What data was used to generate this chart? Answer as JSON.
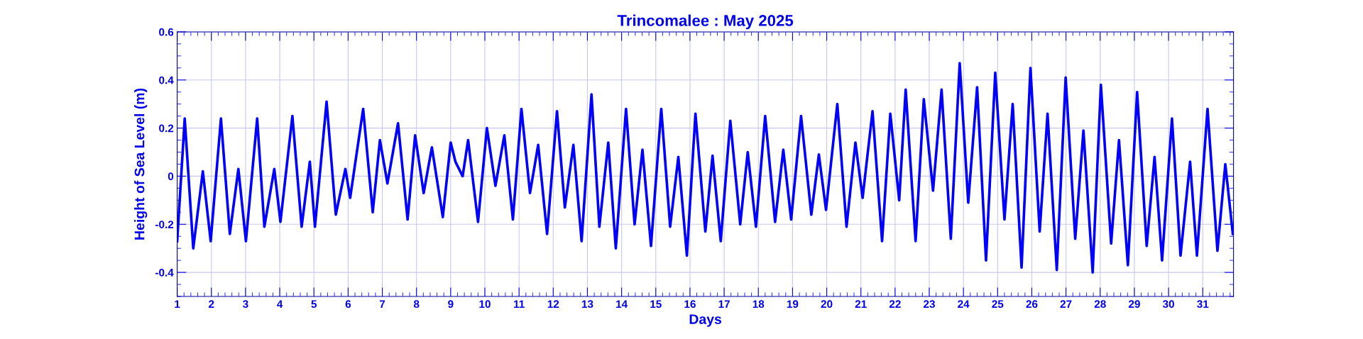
{
  "chart_data": {
    "type": "line",
    "title": "Trincomalee : May 2025",
    "xlabel": "Days",
    "ylabel": "Height of Sea Level (m)",
    "xlim": [
      1,
      31.9
    ],
    "xticks": [
      1,
      2,
      3,
      4,
      5,
      6,
      7,
      8,
      9,
      10,
      11,
      12,
      13,
      14,
      15,
      16,
      17,
      18,
      19,
      20,
      21,
      22,
      23,
      24,
      25,
      26,
      27,
      28,
      29,
      30,
      31
    ],
    "ylim": [
      -0.5,
      0.6
    ],
    "yticks": [
      -0.4,
      -0.2,
      0,
      0.2,
      0.4,
      0.6
    ],
    "grid": true,
    "marker": "none",
    "line_style": "solid",
    "series": [
      {
        "color": "#0000ff",
        "x": [
          1.0,
          1.22,
          1.47,
          1.75,
          1.98,
          2.28,
          2.54,
          2.79,
          3.01,
          3.34,
          3.55,
          3.84,
          4.02,
          4.37,
          4.64,
          4.88,
          5.03,
          5.37,
          5.64,
          5.92,
          6.06,
          6.44,
          6.72,
          6.93,
          7.15,
          7.46,
          7.74,
          7.96,
          8.21,
          8.45,
          8.77,
          9.0,
          9.14,
          9.35,
          9.51,
          9.8,
          10.06,
          10.31,
          10.57,
          10.82,
          11.07,
          11.32,
          11.56,
          11.82,
          12.11,
          12.34,
          12.59,
          12.83,
          13.12,
          13.35,
          13.61,
          13.83,
          14.13,
          14.38,
          14.61,
          14.86,
          15.16,
          15.42,
          15.66,
          15.91,
          16.16,
          16.45,
          16.66,
          16.9,
          17.18,
          17.47,
          17.69,
          17.93,
          18.2,
          18.49,
          18.73,
          18.96,
          19.25,
          19.55,
          19.77,
          19.98,
          20.31,
          20.58,
          20.84,
          21.05,
          21.34,
          21.62,
          21.86,
          22.12,
          22.31,
          22.6,
          22.84,
          23.11,
          23.36,
          23.63,
          23.89,
          24.14,
          24.4,
          24.66,
          24.93,
          25.2,
          25.44,
          25.7,
          25.96,
          26.23,
          26.46,
          26.73,
          26.99,
          27.27,
          27.51,
          27.78,
          28.02,
          28.32,
          28.55,
          28.81,
          29.08,
          29.36,
          29.59,
          29.81,
          30.1,
          30.35,
          30.63,
          30.83,
          31.14,
          31.43,
          31.66,
          31.88
        ],
        "values": [
          -0.27,
          0.24,
          -0.3,
          0.02,
          -0.27,
          0.24,
          -0.24,
          0.03,
          -0.27,
          0.24,
          -0.21,
          0.03,
          -0.19,
          0.25,
          -0.21,
          0.06,
          -0.21,
          0.31,
          -0.16,
          0.03,
          -0.09,
          0.28,
          -0.15,
          0.15,
          -0.03,
          0.22,
          -0.18,
          0.17,
          -0.07,
          0.12,
          -0.17,
          0.14,
          0.06,
          0.0,
          0.15,
          -0.19,
          0.2,
          -0.04,
          0.17,
          -0.18,
          0.28,
          -0.07,
          0.13,
          -0.24,
          0.27,
          -0.13,
          0.13,
          -0.27,
          0.34,
          -0.21,
          0.14,
          -0.3,
          0.28,
          -0.2,
          0.11,
          -0.29,
          0.28,
          -0.21,
          0.08,
          -0.33,
          0.26,
          -0.23,
          0.085,
          -0.27,
          0.23,
          -0.2,
          0.1,
          -0.21,
          0.25,
          -0.19,
          0.11,
          -0.18,
          0.25,
          -0.16,
          0.09,
          -0.14,
          0.3,
          -0.21,
          0.14,
          -0.09,
          0.27,
          -0.27,
          0.26,
          -0.1,
          0.36,
          -0.27,
          0.32,
          -0.06,
          0.36,
          -0.26,
          0.47,
          -0.11,
          0.37,
          -0.35,
          0.43,
          -0.18,
          0.3,
          -0.38,
          0.45,
          -0.23,
          0.26,
          -0.39,
          0.41,
          -0.26,
          0.19,
          -0.4,
          0.38,
          -0.28,
          0.15,
          -0.37,
          0.35,
          -0.29,
          0.08,
          -0.35,
          0.24,
          -0.33,
          0.06,
          -0.33,
          0.28,
          -0.31,
          0.05,
          -0.24
        ]
      }
    ]
  }
}
